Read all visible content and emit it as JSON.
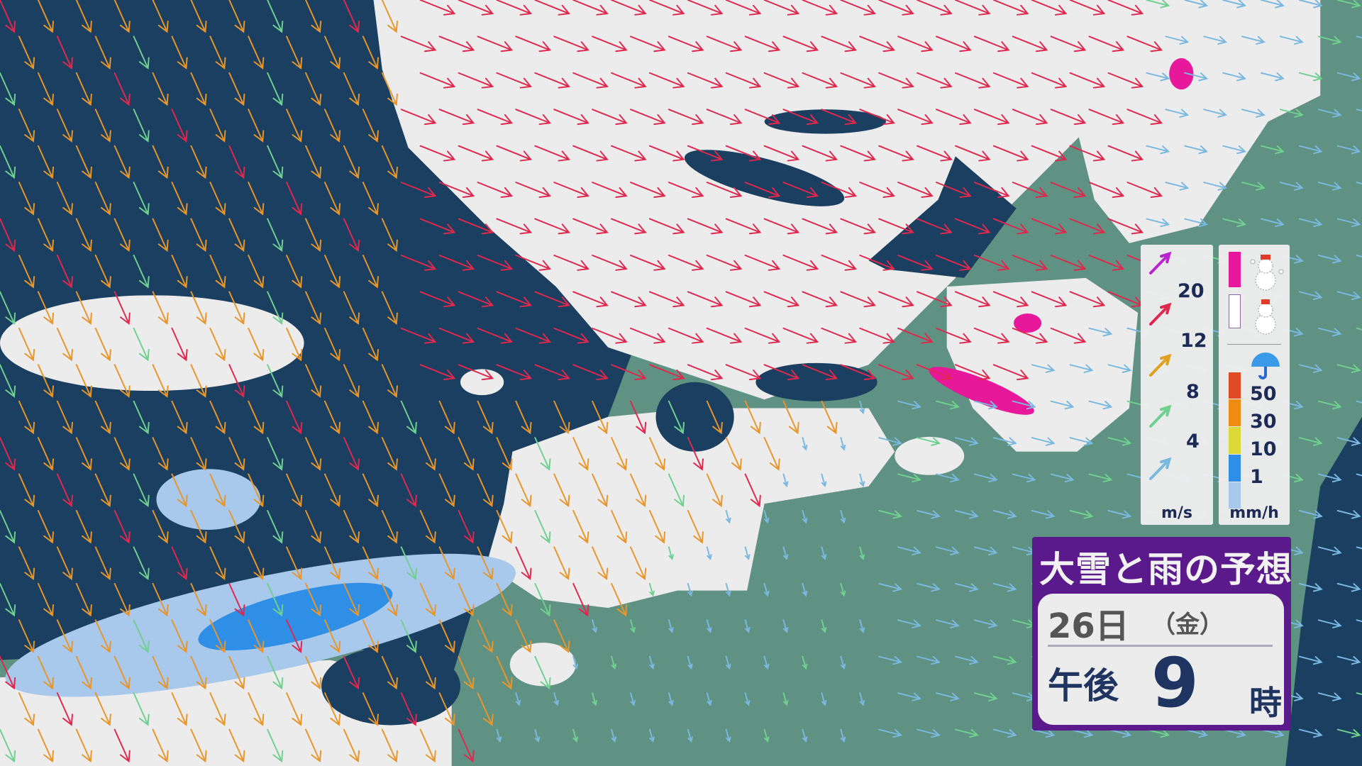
{
  "colors": {
    "sea": "#1a3f60",
    "land": "#5f9282",
    "snow": "#ececec",
    "rain_light": "#a8c8ec",
    "rain_1": "#2f8ee6",
    "heavy_snow": "#e8189a",
    "title_bar": "#5a1a8c"
  },
  "wind_legend": {
    "unit": "m/s",
    "items": [
      {
        "value": "20",
        "color": "#b824d0"
      },
      {
        "value": "12",
        "color": "#e0284e"
      },
      {
        "value": "8",
        "color": "#e0a020"
      },
      {
        "value": "4",
        "color": "#6fd08f"
      },
      {
        "value": "",
        "color": "#7ab8e0"
      }
    ]
  },
  "precip_legend": {
    "snow_items": [
      {
        "label": "heavy-snow",
        "color": "#e8189a",
        "icon": "snowman-heavy-icon"
      },
      {
        "label": "snow",
        "color": "#ffffff",
        "icon": "snowman-icon"
      }
    ],
    "rain_icon": "umbrella-icon",
    "unit": "mm/h",
    "rain_items": [
      {
        "value": "50",
        "color": "#e04a25"
      },
      {
        "value": "30",
        "color": "#f08a10"
      },
      {
        "value": "10",
        "color": "#dcd83a"
      },
      {
        "value": "1",
        "color": "#2f8ee6"
      },
      {
        "value": "",
        "color": "#a8c8ec"
      }
    ]
  },
  "forecast": {
    "title": "大雪と雨の予想",
    "day": "26日",
    "weekday": "（金）",
    "period": "午後",
    "hour": "9",
    "hour_unit": "時"
  }
}
